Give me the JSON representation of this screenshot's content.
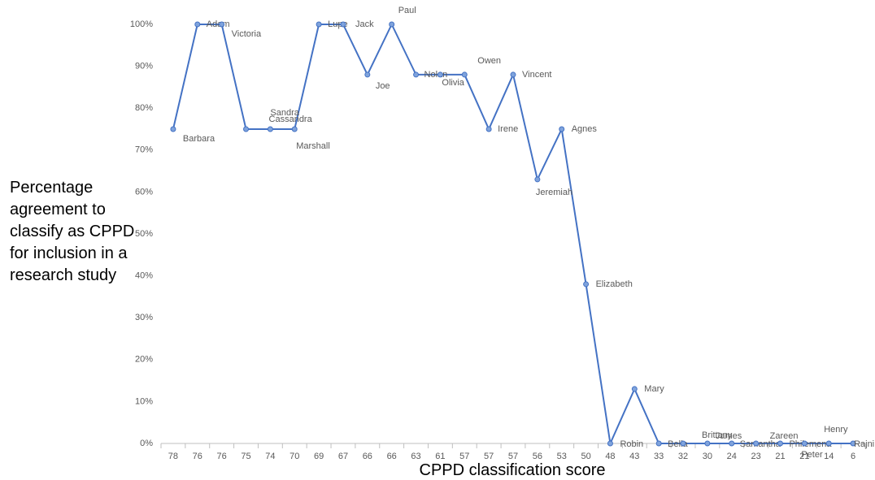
{
  "chart_data": {
    "type": "line",
    "y_axis_label": "Percentage agreement to classify as CPPD for inclusion in a research study",
    "x_axis_label": "CPPD classification score",
    "categories": [
      "78",
      "76",
      "76",
      "75",
      "74",
      "70",
      "69",
      "67",
      "66",
      "66",
      "63",
      "61",
      "57",
      "57",
      "57",
      "56",
      "53",
      "50",
      "48",
      "43",
      "33",
      "32",
      "30",
      "24",
      "23",
      "21",
      "21",
      "14",
      "6"
    ],
    "series": [
      {
        "color": "#4472c4",
        "values": [
          75,
          100,
          100,
          75,
          75,
          75,
          100,
          100,
          88,
          100,
          88,
          88,
          88,
          75,
          88,
          63,
          75,
          38,
          0,
          13,
          0,
          0,
          0,
          0,
          0,
          0,
          0,
          0,
          0
        ],
        "point_labels": [
          "Barbara",
          "Adam",
          "Victoria",
          "Cassandra",
          "Sandra",
          "Marshall",
          "Lupe",
          "Jack",
          "Joe",
          "Paul",
          "Nolan",
          "Olivia",
          "Owen",
          "Irene",
          "Vincent",
          "Jeremiah",
          "Agnes",
          "Elizabeth",
          "Robin",
          "Mary",
          "Bella",
          "Brittany",
          "James",
          "Samantha",
          "Zareen",
          "Philemena",
          "Peter",
          "Henry",
          "Rajni"
        ]
      }
    ],
    "ylim": [
      0,
      100
    ],
    "yticks": [
      {
        "value": 0,
        "label": "0%"
      },
      {
        "value": 10,
        "label": "10%"
      },
      {
        "value": 20,
        "label": "20%"
      },
      {
        "value": 30,
        "label": "30%"
      },
      {
        "value": 40,
        "label": "40%"
      },
      {
        "value": 50,
        "label": "50%"
      },
      {
        "value": 60,
        "label": "60%"
      },
      {
        "value": 70,
        "label": "70%"
      },
      {
        "value": 80,
        "label": "80%"
      },
      {
        "value": 90,
        "label": "90%"
      },
      {
        "value": 100,
        "label": "100%"
      }
    ],
    "grid": false
  }
}
